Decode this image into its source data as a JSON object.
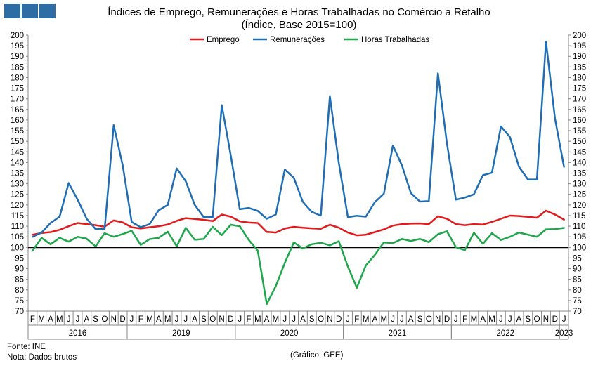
{
  "header": {
    "title_line1": "Índices de Emprego, Remunerações e Horas Trabalhadas no Comércio a Retalho",
    "title_line2": "(Índice, Base 2015=100)",
    "logo_color": "#2e6da4"
  },
  "footer": {
    "source": "Fonte: INE",
    "note": "Nota: Dados brutos",
    "credit": "(Gráfico: GEE)"
  },
  "chart_data": {
    "type": "line",
    "title": "Índices de Emprego, Remunerações e Horas Trabalhadas no Comércio a Retalho",
    "subtitle": "(Índice, Base 2015=100)",
    "ylim": [
      70,
      200
    ],
    "ytick_step": 5,
    "reference_line": 100,
    "legend_position": "top",
    "grid": false,
    "x": [
      "F",
      "M",
      "A",
      "M",
      "J",
      "J",
      "A",
      "S",
      "O",
      "N",
      "D",
      "J",
      "F",
      "M",
      "A",
      "M",
      "J",
      "J",
      "A",
      "S",
      "O",
      "N",
      "D",
      "J",
      "F",
      "M",
      "A",
      "M",
      "J",
      "J",
      "A",
      "S",
      "O",
      "N",
      "D",
      "J",
      "F",
      "M",
      "A",
      "M",
      "J",
      "J",
      "A",
      "S",
      "O",
      "N",
      "D",
      "J",
      "F",
      "M",
      "A",
      "M",
      "J",
      "J",
      "A",
      "S",
      "O",
      "N",
      "D",
      "J"
    ],
    "year_groups": [
      {
        "label": "2016",
        "start": 0,
        "end": 10
      },
      {
        "label": "2019",
        "start": 11,
        "end": 22
      },
      {
        "label": "2020",
        "start": 23,
        "end": 34
      },
      {
        "label": "2021",
        "start": 35,
        "end": 46
      },
      {
        "label": "2022",
        "start": 47,
        "end": 58
      },
      {
        "label": "2023",
        "start": 59,
        "end": 59
      }
    ],
    "series": [
      {
        "name": "Emprego",
        "color": "#e31a1c",
        "values": [
          106.0,
          106.8,
          107.2,
          108.3,
          110.0,
          111.5,
          111.0,
          110.5,
          109.8,
          112.7,
          111.8,
          109.5,
          108.9,
          109.5,
          110.0,
          110.8,
          112.5,
          113.8,
          113.4,
          113.0,
          112.4,
          115.5,
          114.5,
          112.3,
          111.7,
          111.5,
          107.3,
          107.0,
          108.9,
          109.7,
          109.3,
          109.0,
          108.8,
          110.7,
          109.3,
          107.0,
          105.7,
          106.0,
          107.2,
          108.5,
          110.3,
          111.0,
          111.2,
          111.3,
          111.0,
          114.7,
          113.5,
          111.0,
          110.5,
          111.0,
          110.8,
          112.0,
          113.5,
          115.0,
          114.8,
          114.4,
          114.0,
          117.3,
          115.5,
          113.1
        ]
      },
      {
        "name": "Remunerações",
        "color": "#1f6eb5",
        "values": [
          105.0,
          107.0,
          111.5,
          114.5,
          130.3,
          122.5,
          113.5,
          108.6,
          108.6,
          157.6,
          138.7,
          112.0,
          109.5,
          111.0,
          117.5,
          120.0,
          137.2,
          131.2,
          120.0,
          114.3,
          114.3,
          167.0,
          143.3,
          118.0,
          118.6,
          117.2,
          113.5,
          115.5,
          136.7,
          132.8,
          121.5,
          116.7,
          115.0,
          171.3,
          139.7,
          114.3,
          114.9,
          114.5,
          121.3,
          125.3,
          148.0,
          138.7,
          125.6,
          121.6,
          121.8,
          182.0,
          149.0,
          122.5,
          123.5,
          125.0,
          134.0,
          135.2,
          157.0,
          152.0,
          138.0,
          132.0,
          132.0,
          197.0,
          160.7,
          138.0
        ]
      },
      {
        "name": "Horas Trabalhadas",
        "color": "#1ea64b",
        "values": [
          98.5,
          104.5,
          101.5,
          104.5,
          102.7,
          105.0,
          104.1,
          100.5,
          106.7,
          105.0,
          106.3,
          107.8,
          101.2,
          103.9,
          104.5,
          107.4,
          100.5,
          109.2,
          103.6,
          104.0,
          109.7,
          105.8,
          110.7,
          110.0,
          103.5,
          98.5,
          73.3,
          81.8,
          92.7,
          102.4,
          99.5,
          101.5,
          102.2,
          101.0,
          102.9,
          91.0,
          81.0,
          91.5,
          96.5,
          102.4,
          102.0,
          104.0,
          103.0,
          104.0,
          102.5,
          106.2,
          107.6,
          100.1,
          98.7,
          106.9,
          101.7,
          106.7,
          103.5,
          105.0,
          107.0,
          106.0,
          105.0,
          108.5,
          108.6,
          109.2
        ]
      }
    ]
  }
}
